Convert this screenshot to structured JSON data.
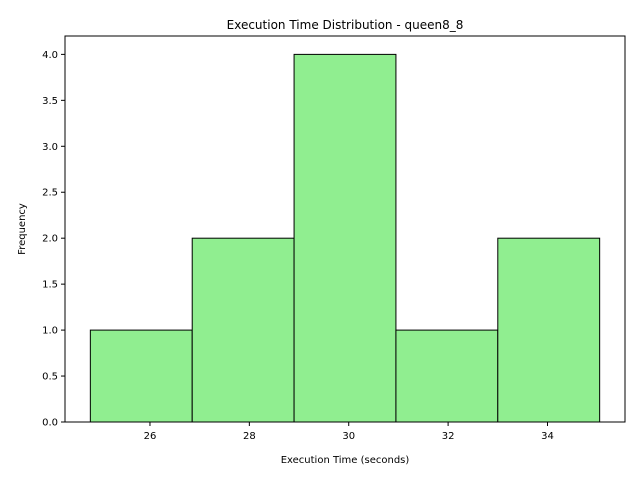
{
  "chart_data": {
    "type": "bar",
    "subtype": "histogram",
    "title": "Execution Time Distribution - queen8_8",
    "xlabel": "Execution Time (seconds)",
    "ylabel": "Frequency",
    "bins": [
      {
        "start": 24.8,
        "end": 26.85,
        "count": 1
      },
      {
        "start": 26.85,
        "end": 28.9,
        "count": 2
      },
      {
        "start": 28.9,
        "end": 30.95,
        "count": 4
      },
      {
        "start": 30.95,
        "end": 33.0,
        "count": 1
      },
      {
        "start": 33.0,
        "end": 35.05,
        "count": 2
      }
    ],
    "xlim": [
      24.29,
      35.56
    ],
    "ylim": [
      0,
      4.2
    ],
    "xticks": [
      26,
      28,
      30,
      32,
      34
    ],
    "yticks": [
      0.0,
      0.5,
      1.0,
      1.5,
      2.0,
      2.5,
      3.0,
      3.5,
      4.0
    ],
    "xtick_labels": [
      "26",
      "28",
      "30",
      "32",
      "34"
    ],
    "ytick_labels": [
      "0.0",
      "0.5",
      "1.0",
      "1.5",
      "2.0",
      "2.5",
      "3.0",
      "3.5",
      "4.0"
    ],
    "bar_color": "#90ee90",
    "edge_color": "#000000",
    "grid": false,
    "legend": "none"
  }
}
